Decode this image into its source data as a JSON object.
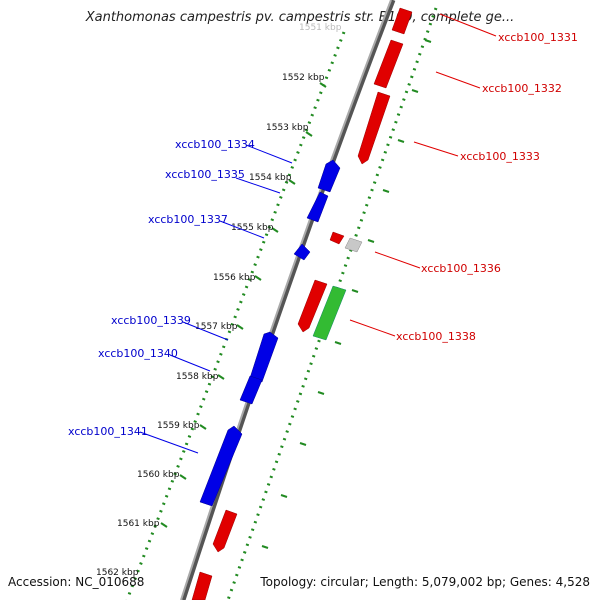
{
  "title": "Xanthomonas campestris pv. campestris str. B100, complete ge...",
  "footer": {
    "accession": "Accession: NC_010688",
    "topology": "Topology: circular; Length: 5,079,002 bp; Genes: 4,528"
  },
  "colors": {
    "forward": "#ff0000",
    "reverse": "#0000ff",
    "rna": "#33cc33",
    "other": "#c8c8c8",
    "backbone": "#808080",
    "ticks": "#228b22"
  },
  "ticks": [
    "1551 kbp",
    "1552 kbp",
    "1553 kbp",
    "1554 kbp",
    "1555 kbp",
    "1556 kbp",
    "1557 kbp",
    "1558 kbp",
    "1559 kbp",
    "1560 kbp",
    "1561 kbp",
    "1562 kbp"
  ],
  "labels": {
    "xccb100_1331": "xccb100_1331",
    "xccb100_1332": "xccb100_1332",
    "xccb100_1333": "xccb100_1333",
    "xccb100_1334": "xccb100_1334",
    "xccb100_1335": "xccb100_1335",
    "xccb100_1336": "xccb100_1336",
    "xccb100_1337": "xccb100_1337",
    "xccb100_1338": "xccb100_1338",
    "xccb100_1339": "xccb100_1339",
    "xccb100_1340": "xccb100_1340",
    "xccb100_1341": "xccb100_1341"
  }
}
